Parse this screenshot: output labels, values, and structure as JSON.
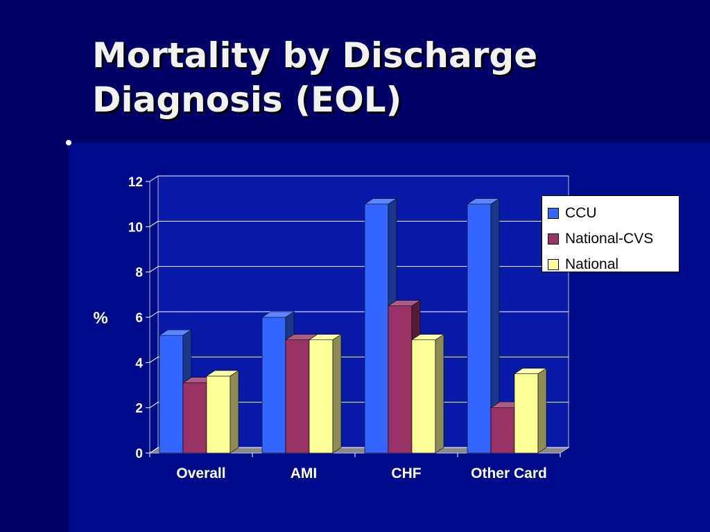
{
  "slide": {
    "title_lines": [
      "Mortality by Discharge",
      "Diagnosis (EOL)"
    ]
  },
  "colors": {
    "background": "#000b8c",
    "band": "#000066",
    "plot_area": "#0a1aa8",
    "CCU": "#3366ff",
    "National-CVS": "#993366",
    "National": "#ffff99"
  },
  "chart_data": {
    "type": "bar",
    "style": "3d-clustered-column",
    "categories": [
      "Overall",
      "AMI",
      "CHF",
      "Other Card"
    ],
    "series": [
      {
        "name": "CCU",
        "values": [
          5.2,
          6.0,
          11.0,
          11.0
        ]
      },
      {
        "name": "National-CVS",
        "values": [
          3.1,
          5.0,
          6.5,
          2.0
        ]
      },
      {
        "name": "National",
        "values": [
          3.4,
          5.0,
          5.0,
          3.5
        ]
      }
    ],
    "ylabel": "%",
    "xlabel": "",
    "ylim": [
      0,
      12
    ],
    "yticks": [
      0,
      2,
      4,
      6,
      8,
      10,
      12
    ],
    "grid": true,
    "legend_position": "top-right"
  }
}
